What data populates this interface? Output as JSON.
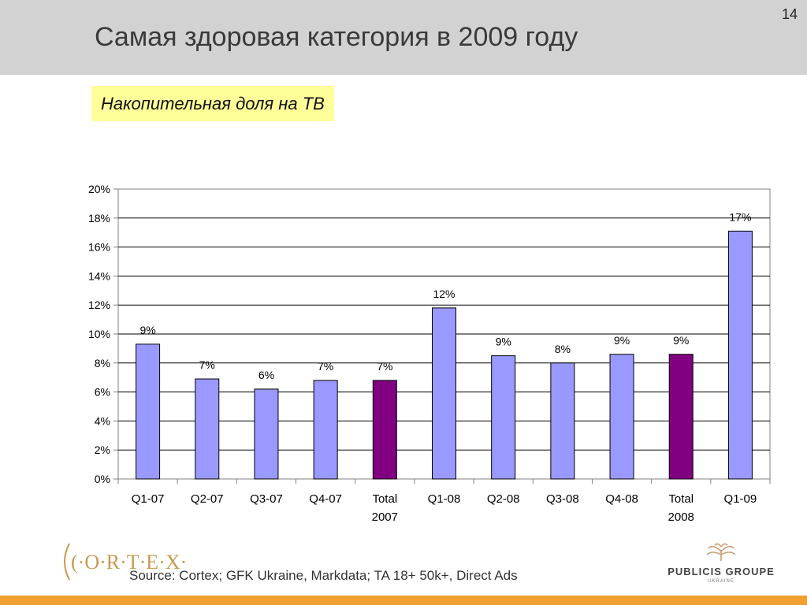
{
  "header": {
    "title": "Самая здоровая категория  в 2009 году",
    "page_number": "14"
  },
  "subtitle": "Накопительная доля на ТВ",
  "footer": {
    "logo_text": "(·O·R·T·E·X·",
    "source": "Source: Cortex; GFK Ukraine, Markdata; TA 18+ 50k+, Direct Ads",
    "publisher": "PUBLICIS GROUPE",
    "publisher_sub": "UKRAINE"
  },
  "colors": {
    "regular_bar": "#9999ff",
    "total_bar": "#800080",
    "accent_bar": "#f0a030",
    "header_bg": "#d2d2d2",
    "subtitle_bg": "#ffff99"
  },
  "chart_data": {
    "type": "bar",
    "categories": [
      [
        "Q1-07"
      ],
      [
        "Q2-07"
      ],
      [
        "Q3-07"
      ],
      [
        "Q4-07"
      ],
      [
        "Total",
        "2007"
      ],
      [
        "Q1-08"
      ],
      [
        "Q2-08"
      ],
      [
        "Q3-08"
      ],
      [
        "Q4-08"
      ],
      [
        "Total",
        "2008"
      ],
      [
        "Q1-09"
      ]
    ],
    "values": [
      9.3,
      6.9,
      6.2,
      6.8,
      6.8,
      11.8,
      8.5,
      8.0,
      8.6,
      8.6,
      17.1
    ],
    "data_labels": [
      "9%",
      "7%",
      "6%",
      "7%",
      "7%",
      "12%",
      "9%",
      "8%",
      "9%",
      "9%",
      "17%"
    ],
    "highlight": [
      false,
      false,
      false,
      false,
      true,
      false,
      false,
      false,
      false,
      true,
      false
    ],
    "ylim": [
      0,
      20
    ],
    "yticks": [
      "0%",
      "2%",
      "4%",
      "6%",
      "8%",
      "10%",
      "12%",
      "14%",
      "16%",
      "18%",
      "20%"
    ],
    "grid": true
  }
}
